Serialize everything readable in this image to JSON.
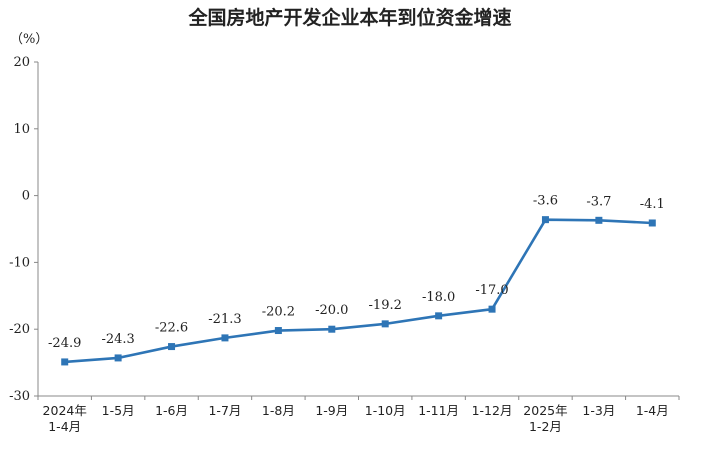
{
  "chart_data": {
    "type": "line",
    "title": "全国房地产开发企业本年到位资金增速",
    "unit_label": "（%）",
    "ylim": [
      -30,
      20
    ],
    "yticks": [
      20,
      10,
      0,
      -10,
      -20,
      -30
    ],
    "grid": false,
    "categories": [
      [
        "2024年",
        "1-4月"
      ],
      [
        "1-5月"
      ],
      [
        "1-6月"
      ],
      [
        "1-7月"
      ],
      [
        "1-8月"
      ],
      [
        "1-9月"
      ],
      [
        "1-10月"
      ],
      [
        "1-11月"
      ],
      [
        "1-12月"
      ],
      [
        "2025年",
        "1-2月"
      ],
      [
        "1-3月"
      ],
      [
        "1-4月"
      ]
    ],
    "series": [
      {
        "values": [
          -24.9,
          -24.3,
          -22.6,
          -21.3,
          -20.2,
          -20.0,
          -19.2,
          -18.0,
          -17.0,
          -3.6,
          -3.7,
          -4.1
        ],
        "labels": [
          "-24.9",
          "-24.3",
          "-22.6",
          "-21.3",
          "-20.2",
          "-20.0",
          "-19.2",
          "-18.0",
          "-17.0",
          "-3.6",
          "-3.7",
          "-4.1"
        ],
        "color": "#2e75b6"
      }
    ]
  }
}
